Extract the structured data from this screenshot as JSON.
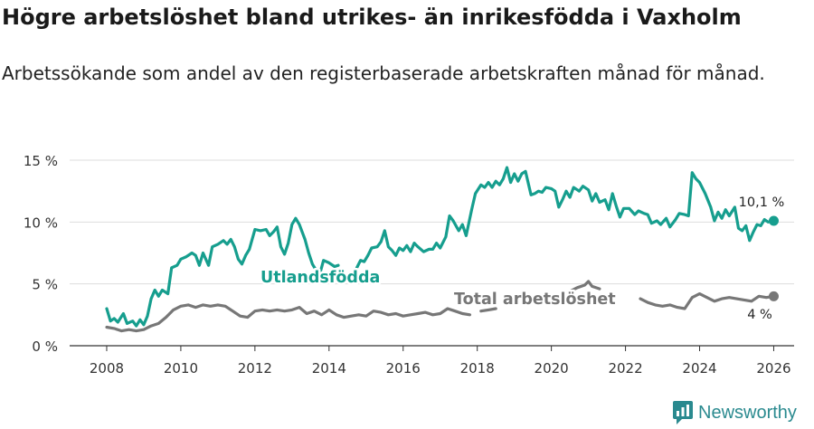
{
  "title": "Högre arbetslöshet bland utrikes- än inrikesfödda i Vaxholm",
  "subtitle": "Arbetssökande som andel av den registerbaserade arbetskraften månad för månad.",
  "brand": "Newsworthy",
  "colors": {
    "foreign": "#169e8e",
    "total": "#777777",
    "grid": "#dddddd",
    "axis": "#333333"
  },
  "chart_data": {
    "type": "line",
    "xlim": [
      2007.0,
      2026.55
    ],
    "ylim": [
      0,
      15
    ],
    "ylabel": "",
    "xlabel": "",
    "x_ticks": [
      2008,
      2010,
      2012,
      2014,
      2016,
      2018,
      2020,
      2022,
      2024,
      2026
    ],
    "y_ticks": [
      {
        "value": 0,
        "label": "0 %"
      },
      {
        "value": 5,
        "label": "5 %"
      },
      {
        "value": 10,
        "label": "10 %"
      },
      {
        "value": 15,
        "label": "15 %"
      }
    ],
    "series": [
      {
        "name": "Utlandsfödda",
        "color": "#169e8e",
        "end_label": "10,1 %",
        "end_value": 10.1,
        "segments": [
          [
            [
              2008.0,
              3.0
            ],
            [
              2008.1,
              2.0
            ],
            [
              2008.2,
              2.2
            ],
            [
              2008.3,
              1.9
            ],
            [
              2008.45,
              2.6
            ],
            [
              2008.55,
              1.8
            ],
            [
              2008.7,
              2.0
            ],
            [
              2008.8,
              1.6
            ],
            [
              2008.9,
              2.1
            ],
            [
              2009.0,
              1.7
            ],
            [
              2009.1,
              2.4
            ],
            [
              2009.2,
              3.8
            ],
            [
              2009.3,
              4.5
            ],
            [
              2009.4,
              4.0
            ],
            [
              2009.5,
              4.5
            ],
            [
              2009.65,
              4.2
            ],
            [
              2009.75,
              6.3
            ],
            [
              2009.9,
              6.5
            ],
            [
              2010.0,
              7.0
            ],
            [
              2010.15,
              7.2
            ],
            [
              2010.3,
              7.5
            ],
            [
              2010.4,
              7.3
            ],
            [
              2010.5,
              6.5
            ],
            [
              2010.6,
              7.5
            ],
            [
              2010.75,
              6.5
            ],
            [
              2010.85,
              8.0
            ],
            [
              2011.0,
              8.2
            ],
            [
              2011.15,
              8.5
            ],
            [
              2011.25,
              8.2
            ],
            [
              2011.35,
              8.6
            ],
            [
              2011.45,
              8.0
            ],
            [
              2011.55,
              7.0
            ],
            [
              2011.65,
              6.6
            ],
            [
              2011.75,
              7.3
            ],
            [
              2011.85,
              7.8
            ],
            [
              2012.0,
              9.4
            ],
            [
              2012.15,
              9.3
            ],
            [
              2012.3,
              9.4
            ],
            [
              2012.4,
              8.9
            ],
            [
              2012.5,
              9.2
            ],
            [
              2012.6,
              9.6
            ],
            [
              2012.7,
              8.0
            ],
            [
              2012.8,
              7.4
            ],
            [
              2012.9,
              8.3
            ],
            [
              2013.0,
              9.8
            ],
            [
              2013.1,
              10.3
            ],
            [
              2013.2,
              9.8
            ],
            [
              2013.35,
              8.6
            ],
            [
              2013.45,
              7.5
            ],
            [
              2013.55,
              6.6
            ],
            [
              2013.65,
              6.1
            ],
            [
              2013.75,
              5.8
            ],
            [
              2013.85,
              6.9
            ],
            [
              2014.0,
              6.7
            ],
            [
              2014.15,
              6.4
            ],
            [
              2014.25,
              6.5
            ]
          ],
          [
            [
              2014.75,
              6.3
            ],
            [
              2014.85,
              6.9
            ],
            [
              2014.95,
              6.8
            ],
            [
              2015.05,
              7.3
            ],
            [
              2015.15,
              7.9
            ],
            [
              2015.3,
              8.0
            ],
            [
              2015.4,
              8.4
            ],
            [
              2015.5,
              9.3
            ],
            [
              2015.6,
              8.0
            ],
            [
              2015.7,
              7.7
            ],
            [
              2015.8,
              7.3
            ],
            [
              2015.9,
              7.9
            ],
            [
              2016.0,
              7.7
            ],
            [
              2016.1,
              8.1
            ],
            [
              2016.2,
              7.6
            ],
            [
              2016.3,
              8.3
            ],
            [
              2016.4,
              8.0
            ],
            [
              2016.55,
              7.6
            ],
            [
              2016.7,
              7.8
            ],
            [
              2016.8,
              7.8
            ],
            [
              2016.9,
              8.3
            ],
            [
              2017.0,
              7.9
            ],
            [
              2017.15,
              8.8
            ],
            [
              2017.25,
              10.5
            ],
            [
              2017.35,
              10.1
            ],
            [
              2017.5,
              9.3
            ],
            [
              2017.6,
              9.8
            ],
            [
              2017.7,
              8.9
            ],
            [
              2017.85,
              11.0
            ],
            [
              2017.95,
              12.3
            ],
            [
              2018.1,
              13.0
            ],
            [
              2018.2,
              12.8
            ],
            [
              2018.3,
              13.2
            ],
            [
              2018.4,
              12.8
            ],
            [
              2018.5,
              13.3
            ],
            [
              2018.6,
              13.0
            ],
            [
              2018.7,
              13.5
            ],
            [
              2018.8,
              14.4
            ],
            [
              2018.9,
              13.2
            ],
            [
              2019.0,
              13.9
            ],
            [
              2019.1,
              13.3
            ],
            [
              2019.2,
              13.9
            ],
            [
              2019.3,
              14.1
            ],
            [
              2019.45,
              12.2
            ],
            [
              2019.55,
              12.3
            ],
            [
              2019.65,
              12.5
            ],
            [
              2019.75,
              12.4
            ],
            [
              2019.85,
              12.8
            ],
            [
              2020.0,
              12.7
            ],
            [
              2020.1,
              12.5
            ],
            [
              2020.2,
              11.2
            ],
            [
              2020.3,
              11.8
            ],
            [
              2020.4,
              12.5
            ],
            [
              2020.5,
              12.0
            ],
            [
              2020.6,
              12.8
            ],
            [
              2020.75,
              12.5
            ],
            [
              2020.85,
              12.9
            ],
            [
              2021.0,
              12.6
            ],
            [
              2021.1,
              11.7
            ],
            [
              2021.2,
              12.3
            ],
            [
              2021.3,
              11.6
            ],
            [
              2021.45,
              11.8
            ],
            [
              2021.55,
              11.0
            ],
            [
              2021.65,
              12.3
            ],
            [
              2021.75,
              11.3
            ],
            [
              2021.85,
              10.4
            ],
            [
              2021.95,
              11.1
            ],
            [
              2022.1,
              11.1
            ],
            [
              2022.25,
              10.6
            ],
            [
              2022.35,
              10.9
            ],
            [
              2022.5,
              10.7
            ],
            [
              2022.6,
              10.6
            ],
            [
              2022.7,
              9.9
            ],
            [
              2022.85,
              10.1
            ],
            [
              2022.95,
              9.8
            ],
            [
              2023.1,
              10.3
            ],
            [
              2023.2,
              9.6
            ],
            [
              2023.35,
              10.2
            ],
            [
              2023.45,
              10.7
            ],
            [
              2023.6,
              10.6
            ],
            [
              2023.7,
              10.5
            ],
            [
              2023.8,
              14.0
            ],
            [
              2023.9,
              13.5
            ],
            [
              2024.0,
              13.2
            ],
            [
              2024.15,
              12.3
            ],
            [
              2024.3,
              11.2
            ],
            [
              2024.4,
              10.1
            ],
            [
              2024.5,
              10.8
            ],
            [
              2024.6,
              10.3
            ],
            [
              2024.7,
              11.0
            ],
            [
              2024.8,
              10.5
            ],
            [
              2024.95,
              11.2
            ],
            [
              2025.05,
              9.5
            ],
            [
              2025.15,
              9.3
            ],
            [
              2025.25,
              9.7
            ],
            [
              2025.35,
              8.5
            ],
            [
              2025.45,
              9.2
            ],
            [
              2025.55,
              9.8
            ],
            [
              2025.65,
              9.7
            ],
            [
              2025.75,
              10.2
            ],
            [
              2025.85,
              10.0
            ],
            [
              2026.0,
              10.1
            ]
          ]
        ]
      },
      {
        "name": "Total arbetslöshet",
        "color": "#777777",
        "end_label": "4 %",
        "end_value": 4.0,
        "segments": [
          [
            [
              2008.0,
              1.5
            ],
            [
              2008.2,
              1.4
            ],
            [
              2008.4,
              1.2
            ],
            [
              2008.6,
              1.3
            ],
            [
              2008.8,
              1.2
            ],
            [
              2009.0,
              1.3
            ],
            [
              2009.2,
              1.6
            ],
            [
              2009.4,
              1.8
            ],
            [
              2009.6,
              2.3
            ],
            [
              2009.8,
              2.9
            ],
            [
              2010.0,
              3.2
            ],
            [
              2010.2,
              3.3
            ],
            [
              2010.4,
              3.1
            ],
            [
              2010.6,
              3.3
            ],
            [
              2010.8,
              3.2
            ],
            [
              2011.0,
              3.3
            ],
            [
              2011.2,
              3.2
            ],
            [
              2011.4,
              2.8
            ],
            [
              2011.6,
              2.4
            ],
            [
              2011.8,
              2.3
            ],
            [
              2012.0,
              2.8
            ],
            [
              2012.2,
              2.9
            ],
            [
              2012.4,
              2.8
            ],
            [
              2012.6,
              2.9
            ],
            [
              2012.8,
              2.8
            ],
            [
              2013.0,
              2.9
            ],
            [
              2013.2,
              3.1
            ],
            [
              2013.4,
              2.6
            ],
            [
              2013.6,
              2.8
            ],
            [
              2013.8,
              2.5
            ],
            [
              2014.0,
              2.9
            ],
            [
              2014.2,
              2.5
            ],
            [
              2014.4,
              2.3
            ],
            [
              2014.6,
              2.4
            ],
            [
              2014.8,
              2.5
            ],
            [
              2015.0,
              2.4
            ],
            [
              2015.2,
              2.8
            ],
            [
              2015.4,
              2.7
            ],
            [
              2015.6,
              2.5
            ],
            [
              2015.8,
              2.6
            ],
            [
              2016.0,
              2.4
            ],
            [
              2016.2,
              2.5
            ],
            [
              2016.4,
              2.6
            ],
            [
              2016.6,
              2.7
            ],
            [
              2016.8,
              2.5
            ],
            [
              2017.0,
              2.6
            ],
            [
              2017.2,
              3.0
            ],
            [
              2017.4,
              2.8
            ],
            [
              2017.6,
              2.6
            ],
            [
              2017.8,
              2.5
            ]
          ],
          [
            [
              2018.1,
              2.8
            ],
            [
              2018.3,
              2.9
            ],
            [
              2018.5,
              3.0
            ]
          ],
          [
            [
              2020.5,
              4.4
            ],
            [
              2020.7,
              4.7
            ],
            [
              2020.9,
              4.9
            ],
            [
              2021.0,
              5.2
            ],
            [
              2021.1,
              4.8
            ],
            [
              2021.3,
              4.6
            ]
          ],
          [
            [
              2022.4,
              3.8
            ],
            [
              2022.6,
              3.5
            ],
            [
              2022.8,
              3.3
            ],
            [
              2023.0,
              3.2
            ],
            [
              2023.2,
              3.3
            ],
            [
              2023.4,
              3.1
            ],
            [
              2023.6,
              3.0
            ],
            [
              2023.8,
              3.9
            ],
            [
              2024.0,
              4.2
            ],
            [
              2024.2,
              3.9
            ],
            [
              2024.4,
              3.6
            ],
            [
              2024.6,
              3.8
            ],
            [
              2024.8,
              3.9
            ],
            [
              2025.0,
              3.8
            ],
            [
              2025.2,
              3.7
            ],
            [
              2025.4,
              3.6
            ],
            [
              2025.6,
              4.0
            ],
            [
              2025.8,
              3.9
            ],
            [
              2026.0,
              4.0
            ]
          ]
        ]
      }
    ]
  }
}
